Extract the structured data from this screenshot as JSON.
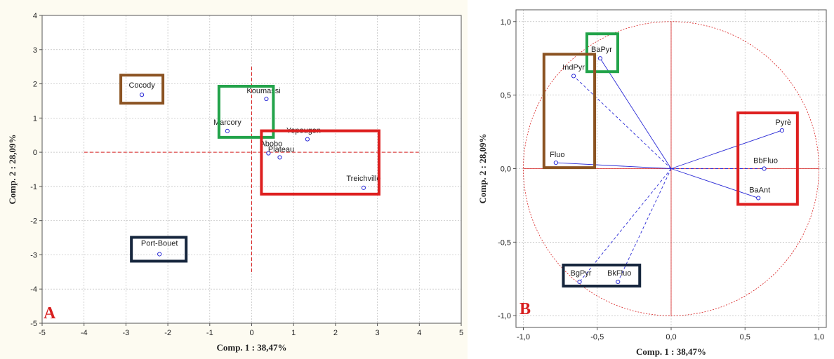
{
  "colors": {
    "red": "#de1f1f",
    "green": "#22a34a",
    "brown": "#8b5322",
    "navy": "#16263d",
    "point": "#2a2ad6",
    "guide_red": "#d81f1f",
    "grid": "#bdbdbd"
  },
  "chart_data": [
    {
      "type": "scatter",
      "panel_label": "A",
      "xlabel": "Comp. 1 : 38,47%",
      "ylabel": "Comp. 2 : 28,09%",
      "xlim": [
        -5,
        5
      ],
      "ylim": [
        -5,
        4
      ],
      "xticks": [
        "-5",
        "-4",
        "-3",
        "-2",
        "-1",
        "0",
        "1",
        "2",
        "3",
        "4",
        "5"
      ],
      "yticks": [
        "4",
        "3",
        "2",
        "1",
        "0",
        "-1",
        "-2",
        "-3",
        "-4",
        "-5"
      ],
      "grid": true,
      "points": [
        {
          "label": "Cocody",
          "x": -2.62,
          "y": 1.68
        },
        {
          "label": "Koumassi",
          "x": 0.35,
          "y": 1.56
        },
        {
          "label": "Marcory",
          "x": -0.58,
          "y": 0.62
        },
        {
          "label": "Yopougon",
          "x": 1.33,
          "y": 0.38
        },
        {
          "label": "Abobo",
          "x": 0.4,
          "y": -0.03
        },
        {
          "label": "Plateau",
          "x": 0.67,
          "y": -0.15
        },
        {
          "label": "Treichville",
          "x": 2.67,
          "y": -1.04
        },
        {
          "label": "Port-Bouet",
          "x": -2.2,
          "y": -2.98
        }
      ],
      "groups": [
        {
          "color": "brown",
          "members": [
            "Cocody"
          ]
        },
        {
          "color": "green",
          "members": [
            "Koumassi",
            "Marcory"
          ]
        },
        {
          "color": "red",
          "members": [
            "Yopougon",
            "Abobo",
            "Plateau",
            "Treichville"
          ]
        },
        {
          "color": "navy",
          "members": [
            "Port-Bouet"
          ]
        }
      ]
    },
    {
      "type": "scatter",
      "panel_label": "B",
      "xlabel": "Comp. 1 : 38,47%",
      "ylabel": "Comp. 2 : 28,09%",
      "xlim": [
        -1.05,
        1.05
      ],
      "ylim": [
        -1.08,
        1.08
      ],
      "xticks": [
        "-1,0",
        "-0,5",
        "0,0",
        "0,5",
        "1,0"
      ],
      "yticks": [
        "1,0",
        "0,5",
        "0,0",
        "-0,5",
        "-1,0"
      ],
      "grid": true,
      "unit_circle": true,
      "vectors": [
        {
          "label": "BaPyr",
          "x": -0.48,
          "y": 0.75,
          "line": "solid"
        },
        {
          "label": "IndPyr",
          "x": -0.66,
          "y": 0.63,
          "line": "dashed"
        },
        {
          "label": "Fluo",
          "x": -0.78,
          "y": 0.04,
          "line": "solid"
        },
        {
          "label": "Pyrè",
          "x": 0.75,
          "y": 0.26,
          "line": "solid"
        },
        {
          "label": "BbFluo",
          "x": 0.63,
          "y": 0.0,
          "line": "dashed"
        },
        {
          "label": "BaAnt",
          "x": 0.59,
          "y": -0.2,
          "line": "solid"
        },
        {
          "label": "BgPyr",
          "x": -0.62,
          "y": -0.77,
          "line": "dashed"
        },
        {
          "label": "BkFluo",
          "x": -0.36,
          "y": -0.77,
          "line": "dashed"
        }
      ],
      "groups": [
        {
          "color": "green",
          "members": [
            "BaPyr"
          ]
        },
        {
          "color": "brown",
          "members": [
            "IndPyr",
            "Fluo"
          ]
        },
        {
          "color": "red",
          "members": [
            "Pyrè",
            "BbFluo",
            "BaAnt"
          ]
        },
        {
          "color": "navy",
          "members": [
            "BgPyr",
            "BkFluo"
          ]
        }
      ]
    }
  ]
}
